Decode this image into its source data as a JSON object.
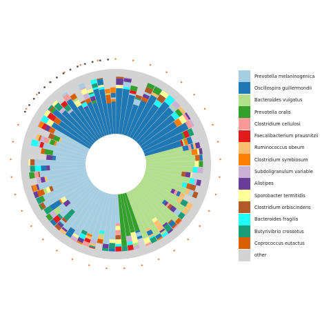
{
  "chart_data": {
    "type": "circular stacked bar",
    "title": "",
    "xlabel": "",
    "ylabel": "",
    "legend_position": "right",
    "grid": false,
    "legend": [
      {
        "name": "Prevotella melaninogenica",
        "color": "#a6cee3"
      },
      {
        "name": "Oscillospira guillermondii",
        "color": "#1f78b4"
      },
      {
        "name": "Bacteroides vulgatus",
        "color": "#b2df8a"
      },
      {
        "name": "Prevotella oralis",
        "color": "#33a02c"
      },
      {
        "name": "Clostridium cellulosi",
        "color": "#fb9a99"
      },
      {
        "name": "Faecalibacterium prausnitzii",
        "color": "#e31a1c"
      },
      {
        "name": "Ruminococcus obeum",
        "color": "#fdbf6f"
      },
      {
        "name": "Clostridium symbiosum",
        "color": "#ff7f00"
      },
      {
        "name": "Subdoligranulum variable",
        "color": "#cab2d6"
      },
      {
        "name": "Alistipes",
        "color": "#6a3d9a"
      },
      {
        "name": "Sporobacter termitidis",
        "color": "#ffff99"
      },
      {
        "name": "Clostridium orbiscindens",
        "color": "#b15928"
      },
      {
        "name": "Bacteroides fragilis",
        "color": "#1fffff"
      },
      {
        "name": "Butyrivibrio crossotus",
        "color": "#1b9e77"
      },
      {
        "name": "Coprococcus eutactus",
        "color": "#d95f02"
      },
      {
        "name": "other",
        "color": "#d3d3d3"
      }
    ],
    "samples": [
      {
        "dominant": "Prevotella melaninogenica",
        "count": 28,
        "start_angle_deg": 176,
        "end_angle_deg": 300
      },
      {
        "dominant": "Oscillospira guillermondii",
        "count": 14,
        "start_angle_deg": 300,
        "end_angle_deg": 360
      },
      {
        "dominant": "Oscillospira guillermondii",
        "count": 14,
        "start_angle_deg": 0,
        "end_angle_deg": 75
      },
      {
        "dominant": "Bacteroides vulgatus",
        "count": 20,
        "start_angle_deg": 75,
        "end_angle_deg": 160
      },
      {
        "dominant": "Prevotella oralis",
        "count": 4,
        "start_angle_deg": 160,
        "end_angle_deg": 176
      }
    ],
    "outer_markers": [
      {
        "type": "orange_flag",
        "approx_count": 37
      },
      {
        "type": "grey_dot",
        "approx_count": 14
      }
    ]
  }
}
